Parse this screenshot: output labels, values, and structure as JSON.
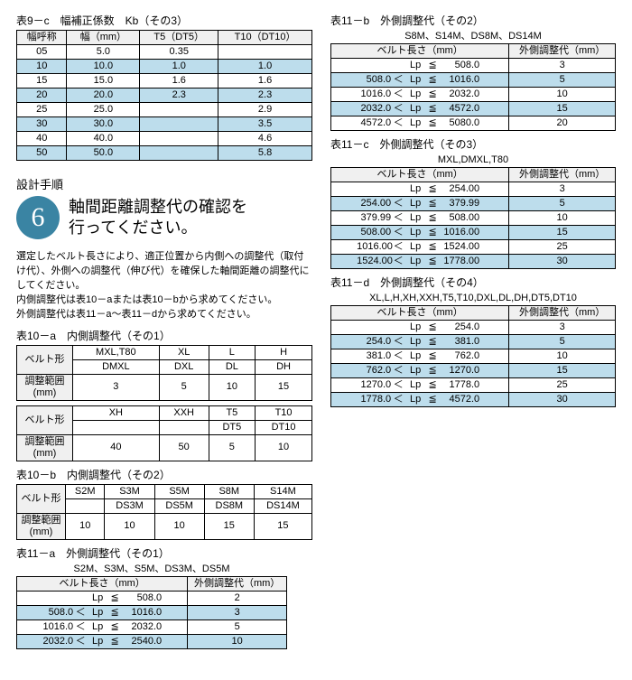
{
  "colors": {
    "stripe": "#bdddec",
    "header": "#f0f0f0",
    "circle": "#3a84a3"
  },
  "t9c": {
    "title": "表9－c　幅補正係数　Kb（その3）",
    "headers": [
      "幅呼称",
      "幅（mm）",
      "T5（DT5）",
      "T10（DT10）"
    ],
    "rows": [
      [
        "05",
        "5.0",
        "0.35",
        ""
      ],
      [
        "10",
        "10.0",
        "1.0",
        "1.0"
      ],
      [
        "15",
        "15.0",
        "1.6",
        "1.6"
      ],
      [
        "20",
        "20.0",
        "2.3",
        "2.3"
      ],
      [
        "25",
        "25.0",
        "",
        "2.9"
      ],
      [
        "30",
        "30.0",
        "",
        "3.5"
      ],
      [
        "40",
        "40.0",
        "",
        "4.6"
      ],
      [
        "50",
        "50.0",
        "",
        "5.8"
      ]
    ]
  },
  "step": {
    "label": "設計手順",
    "num": "6",
    "text1": "軸間距離調整代の確認を",
    "text2": "行ってください。"
  },
  "para": [
    "選定したベルト長さにより、適正位置から内側への調整代（取付け代）、外側への調整代（伸び代）を確保した軸間距離の調整代にしてください。",
    "内側調整代は表10－aまたは表10－bから求めてください。",
    "外側調整代は表11－a～表11－dから求めてください。"
  ],
  "t10a": {
    "title": "表10－a　内側調整代（その1）",
    "hdr": "ベルト形",
    "adj": "調整範囲(mm)",
    "r1": {
      "labels": [
        "MXL,T80\nDMXL",
        "XL\nDXL",
        "L\nDL",
        "H\nDH"
      ],
      "vals": [
        "3",
        "5",
        "10",
        "15"
      ]
    },
    "r2": {
      "labels": [
        "XH",
        "XXH",
        "T5\nDT5",
        "T10\nDT10"
      ],
      "vals": [
        "40",
        "50",
        "5",
        "10"
      ]
    }
  },
  "t10b": {
    "title": "表10－b　内側調整代（その2）",
    "hdr": "ベルト形",
    "adj": "調整範囲(mm)",
    "labels": [
      "S2M",
      "S3M\nDS3M",
      "S5M\nDS5M",
      "S8M\nDS8M",
      "S14M\nDS14M"
    ],
    "vals": [
      "10",
      "10",
      "10",
      "15",
      "15"
    ]
  },
  "t11a": {
    "title": "表11－a　外側調整代（その1）",
    "sub": "S2M、S3M、S5M、DS3M、DS5M",
    "h1": "ベルト長さ（mm）",
    "h2": "外側調整代（mm）",
    "rows": [
      {
        "a": "",
        "o1": "",
        "lp": "Lp",
        "o2": "≦",
        "b": "508.0",
        "v": "2"
      },
      {
        "a": "508.0",
        "o1": "＜",
        "lp": "Lp",
        "o2": "≦",
        "b": "1016.0",
        "v": "3"
      },
      {
        "a": "1016.0",
        "o1": "＜",
        "lp": "Lp",
        "o2": "≦",
        "b": "2032.0",
        "v": "5"
      },
      {
        "a": "2032.0",
        "o1": "＜",
        "lp": "Lp",
        "o2": "≦",
        "b": "2540.0",
        "v": "10"
      }
    ]
  },
  "t11b": {
    "title": "表11－b　外側調整代（その2）",
    "sub": "S8M、S14M、DS8M、DS14M",
    "h1": "ベルト長さ（mm）",
    "h2": "外側調整代（mm）",
    "rows": [
      {
        "a": "",
        "o1": "",
        "lp": "Lp",
        "o2": "≦",
        "b": "508.0",
        "v": "3"
      },
      {
        "a": "508.0",
        "o1": "＜",
        "lp": "Lp",
        "o2": "≦",
        "b": "1016.0",
        "v": "5"
      },
      {
        "a": "1016.0",
        "o1": "＜",
        "lp": "Lp",
        "o2": "≦",
        "b": "2032.0",
        "v": "10"
      },
      {
        "a": "2032.0",
        "o1": "＜",
        "lp": "Lp",
        "o2": "≦",
        "b": "4572.0",
        "v": "15"
      },
      {
        "a": "4572.0",
        "o1": "＜",
        "lp": "Lp",
        "o2": "≦",
        "b": "5080.0",
        "v": "20"
      }
    ]
  },
  "t11c": {
    "title": "表11－c　外側調整代（その3）",
    "sub": "MXL,DMXL,T80",
    "h1": "ベルト長さ（mm）",
    "h2": "外側調整代（mm）",
    "rows": [
      {
        "a": "",
        "o1": "",
        "lp": "Lp",
        "o2": "≦",
        "b": "254.00",
        "v": "3"
      },
      {
        "a": "254.00",
        "o1": "＜",
        "lp": "Lp",
        "o2": "≦",
        "b": "379.99",
        "v": "5"
      },
      {
        "a": "379.99",
        "o1": "＜",
        "lp": "Lp",
        "o2": "≦",
        "b": "508.00",
        "v": "10"
      },
      {
        "a": "508.00",
        "o1": "＜",
        "lp": "Lp",
        "o2": "≦",
        "b": "1016.00",
        "v": "15"
      },
      {
        "a": "1016.00",
        "o1": "＜",
        "lp": "Lp",
        "o2": "≦",
        "b": "1524.00",
        "v": "25"
      },
      {
        "a": "1524.00",
        "o1": "＜",
        "lp": "Lp",
        "o2": "≦",
        "b": "1778.00",
        "v": "30"
      }
    ]
  },
  "t11d": {
    "title": "表11－d　外側調整代（その4）",
    "sub": "XL,L,H,XH,XXH,T5,T10,DXL,DL,DH,DT5,DT10",
    "h1": "ベルト長さ（mm）",
    "h2": "外側調整代（mm）",
    "rows": [
      {
        "a": "",
        "o1": "",
        "lp": "Lp",
        "o2": "≦",
        "b": "254.0",
        "v": "3"
      },
      {
        "a": "254.0",
        "o1": "＜",
        "lp": "Lp",
        "o2": "≦",
        "b": "381.0",
        "v": "5"
      },
      {
        "a": "381.0",
        "o1": "＜",
        "lp": "Lp",
        "o2": "≦",
        "b": "762.0",
        "v": "10"
      },
      {
        "a": "762.0",
        "o1": "＜",
        "lp": "Lp",
        "o2": "≦",
        "b": "1270.0",
        "v": "15"
      },
      {
        "a": "1270.0",
        "o1": "＜",
        "lp": "Lp",
        "o2": "≦",
        "b": "1778.0",
        "v": "25"
      },
      {
        "a": "1778.0",
        "o1": "＜",
        "lp": "Lp",
        "o2": "≦",
        "b": "4572.0",
        "v": "30"
      }
    ]
  }
}
